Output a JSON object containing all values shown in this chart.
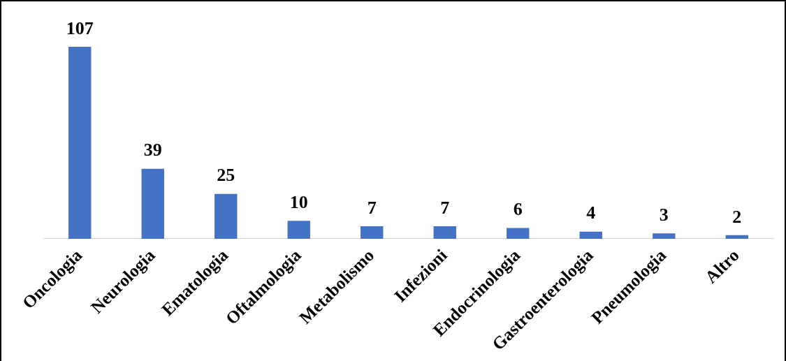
{
  "chart_data": {
    "type": "bar",
    "categories": [
      "Oncologia",
      "Neurologia",
      "Ematologia",
      "Oftalmologia",
      "Metabolismo",
      "Infezioni",
      "Endocrinologia",
      "Gastroenterologia",
      "Pneumologia",
      "Altro"
    ],
    "values": [
      107,
      39,
      25,
      10,
      7,
      7,
      6,
      4,
      3,
      2
    ],
    "color": "#4472c4",
    "data_labels": true,
    "grid": false,
    "legend": false
  }
}
